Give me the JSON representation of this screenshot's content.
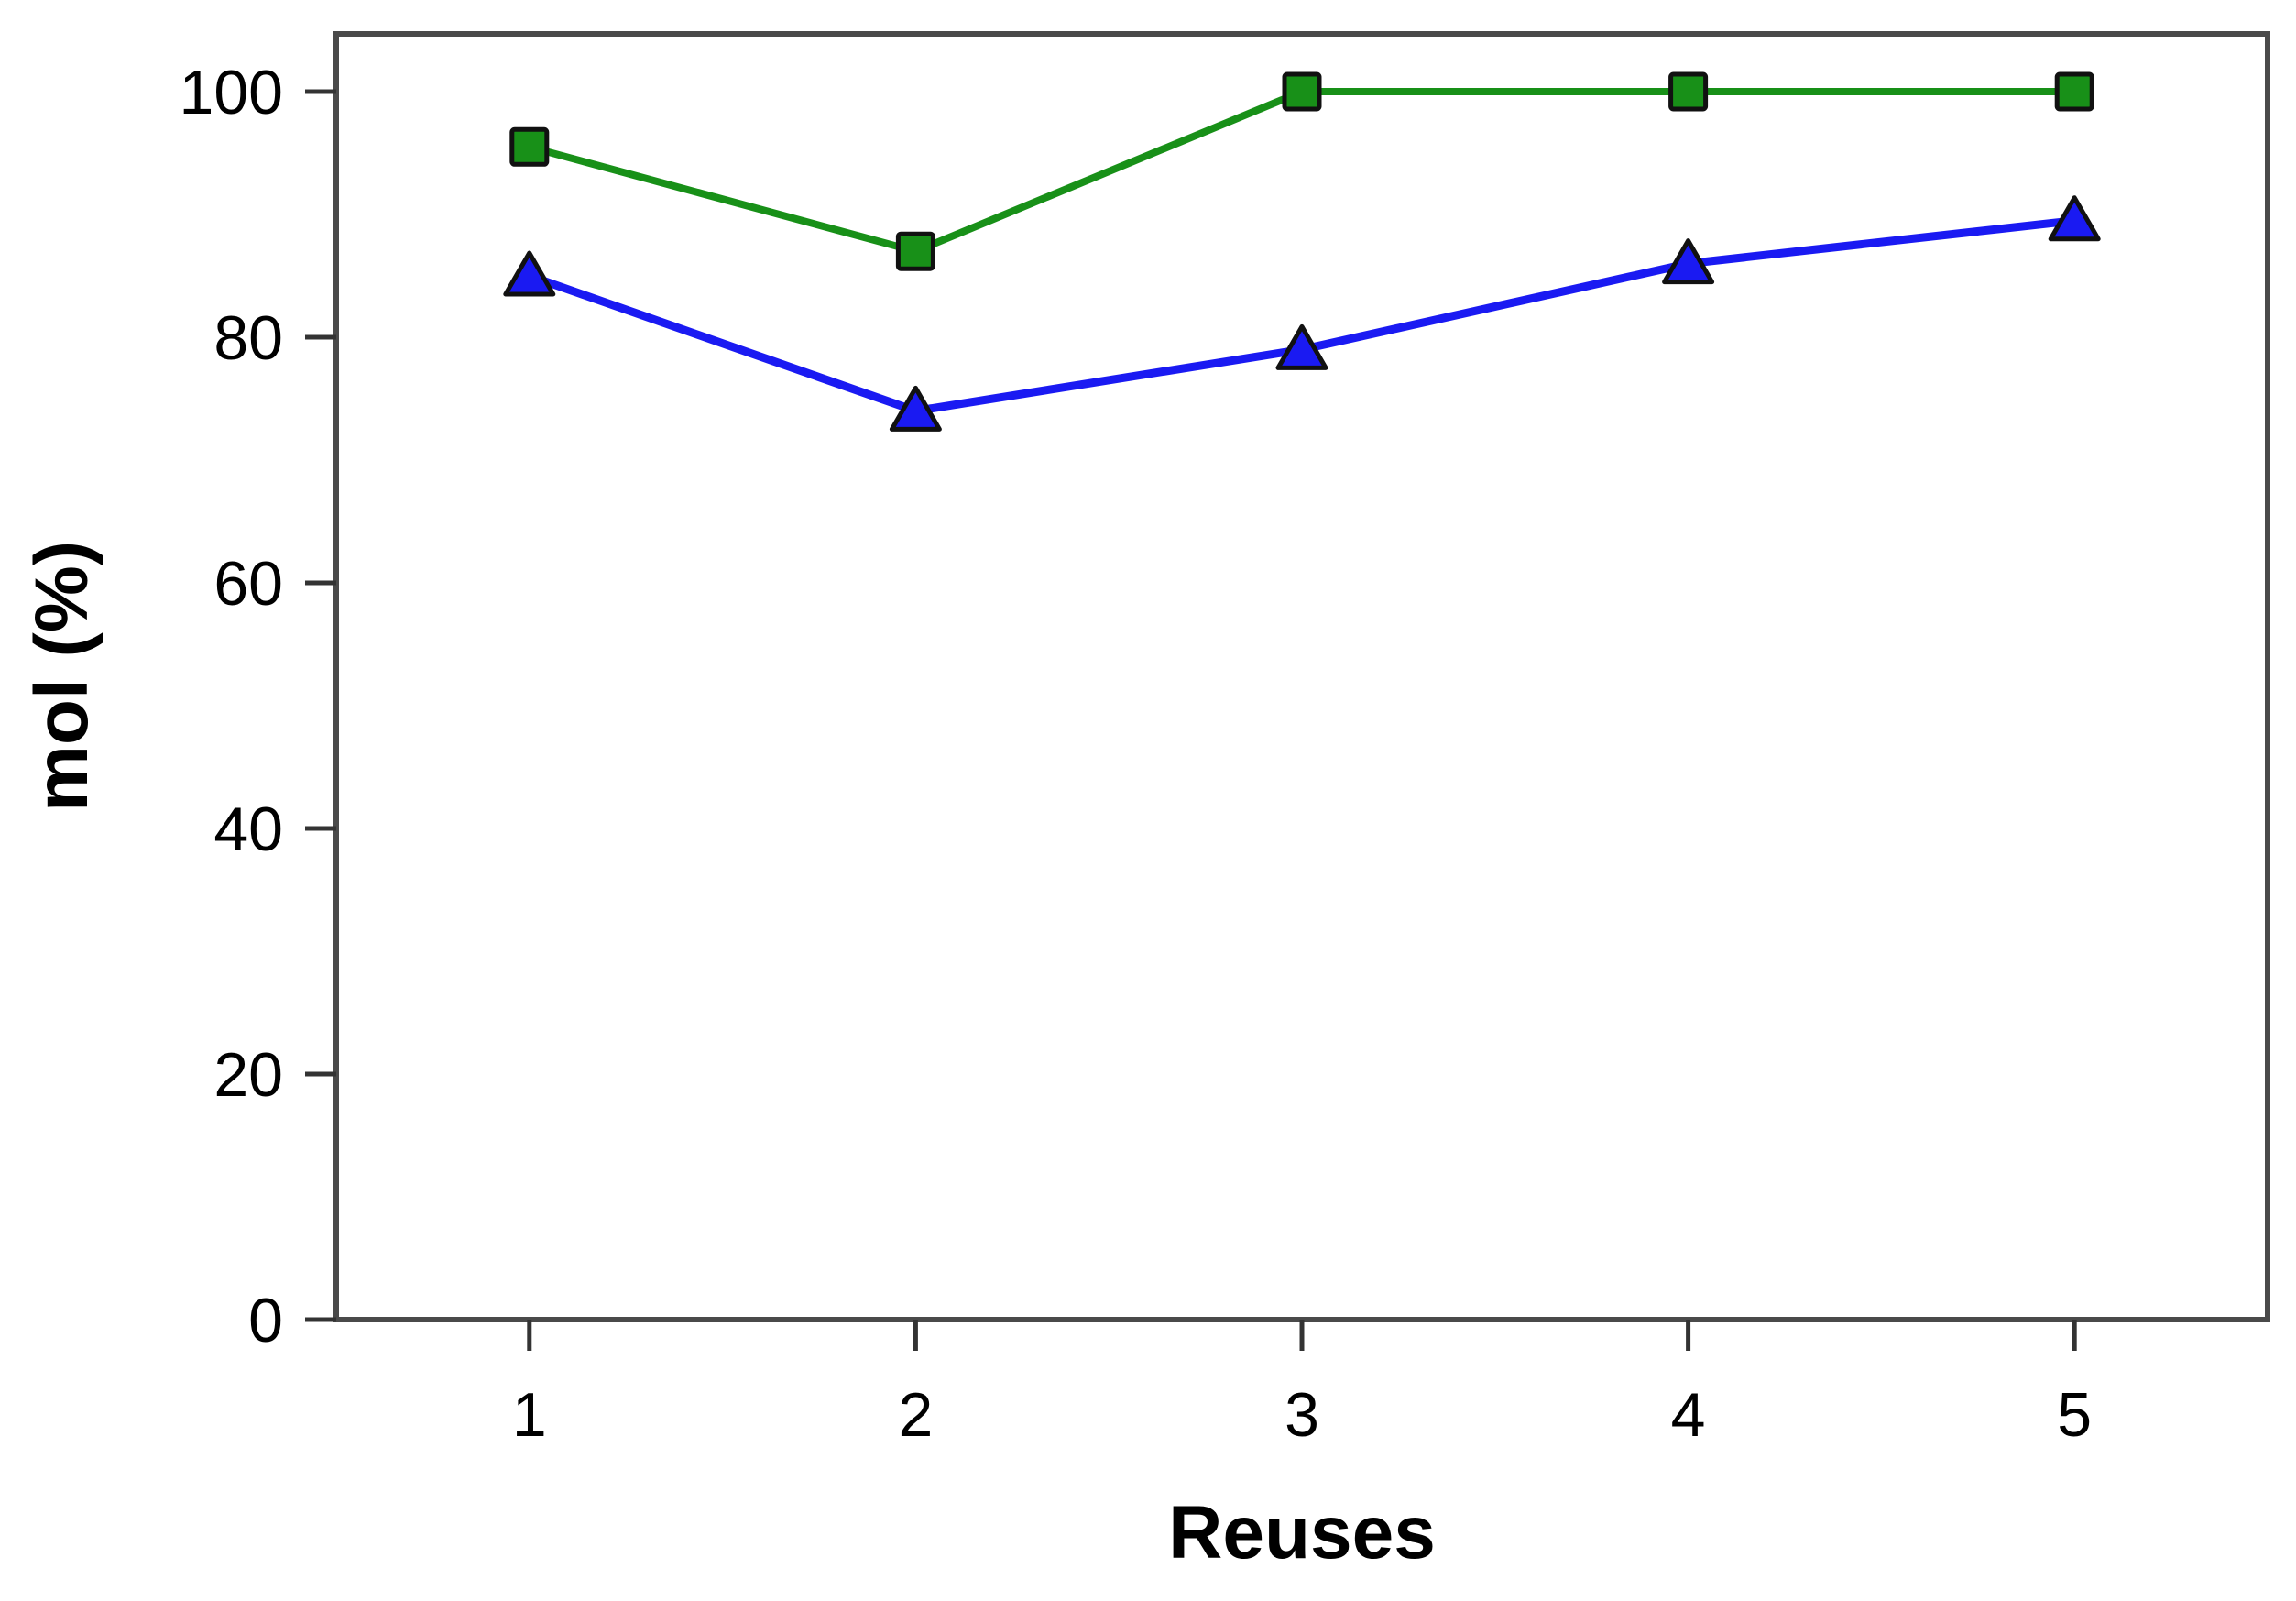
{
  "chart_data": {
    "type": "line",
    "title": "",
    "xlabel": "Reuses",
    "ylabel": "mol (%)",
    "categories": [
      1,
      2,
      3,
      4,
      5
    ],
    "x_tick_labels": [
      "1",
      "2",
      "3",
      "4",
      "5"
    ],
    "y_tick_values": [
      0,
      20,
      40,
      60,
      80,
      100
    ],
    "y_tick_labels": [
      "0",
      "20",
      "40",
      "60",
      "80",
      "100"
    ],
    "xlim": [
      0.5,
      5.5
    ],
    "ylim": [
      0,
      105
    ],
    "grid": false,
    "legend": "none",
    "series": [
      {
        "name": "green-squares-series",
        "marker": "square",
        "color": "#189018",
        "values": [
          95.5,
          87,
          100,
          100,
          100
        ]
      },
      {
        "name": "blue-triangles-series",
        "marker": "triangle-up",
        "color": "#1a1af2",
        "values": [
          85,
          74,
          79,
          86,
          89.5
        ]
      }
    ],
    "marker_edge_color": "#111111",
    "frame_color": "#4a4a4a",
    "tick_color": "#333333",
    "text_color": "#000000",
    "background_color": "#ffffff"
  }
}
